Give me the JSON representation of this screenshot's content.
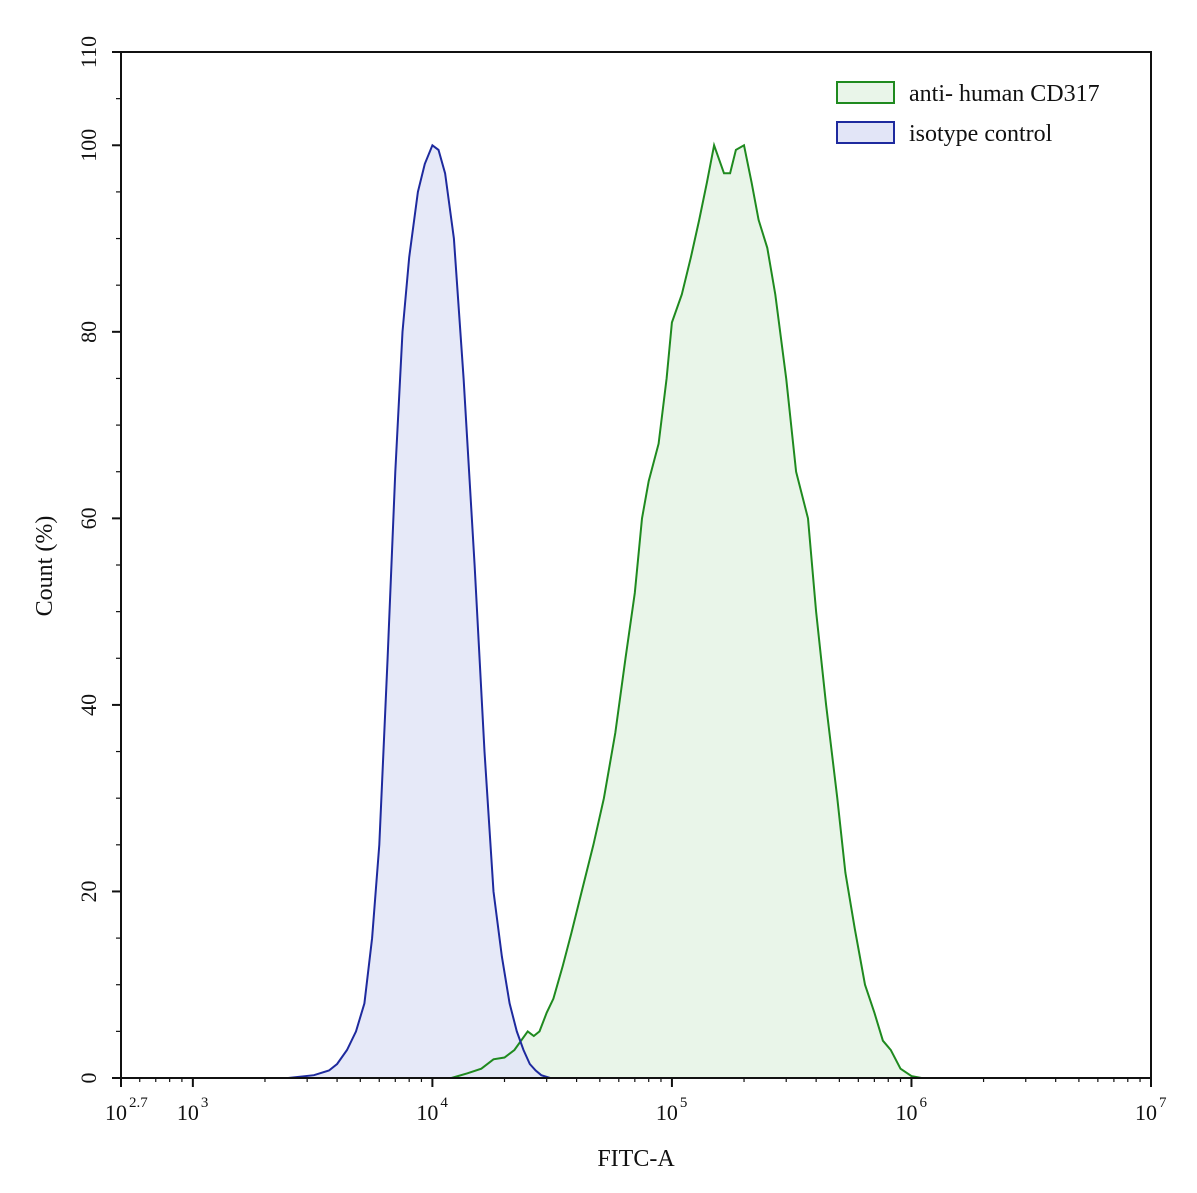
{
  "chart_data": {
    "type": "area",
    "title": "",
    "xlabel": "FITC-A",
    "ylabel": "Count  (%)",
    "x_scale": "log10",
    "xlim": [
      501.187,
      10000000
    ],
    "ylim": [
      0,
      110
    ],
    "x_ticks": [
      {
        "value": 501.187,
        "base": "10",
        "exp": "2.7"
      },
      {
        "value": 1000,
        "base": "10",
        "exp": "3"
      },
      {
        "value": 10000,
        "base": "10",
        "exp": "4"
      },
      {
        "value": 100000,
        "base": "10",
        "exp": "5"
      },
      {
        "value": 1000000,
        "base": "10",
        "exp": "6"
      },
      {
        "value": 10000000,
        "base": "10",
        "exp": "7"
      }
    ],
    "y_ticks": [
      "0",
      "20",
      "40",
      "60",
      "80",
      "100",
      "110"
    ],
    "grid": false,
    "legend_position": "top-right",
    "series": [
      {
        "name": "anti- human CD317",
        "stroke": "#1f8a1f",
        "fill": "#e9f5e9",
        "points": [
          [
            12000,
            0
          ],
          [
            14000,
            0.5
          ],
          [
            16000,
            1
          ],
          [
            18000,
            2
          ],
          [
            20000,
            2.2
          ],
          [
            22000,
            3
          ],
          [
            25000,
            5
          ],
          [
            26500,
            4.5
          ],
          [
            28000,
            5
          ],
          [
            30000,
            7
          ],
          [
            32000,
            8.5
          ],
          [
            35000,
            12
          ],
          [
            38000,
            15.5
          ],
          [
            42000,
            20
          ],
          [
            47000,
            25
          ],
          [
            52000,
            30
          ],
          [
            58000,
            37
          ],
          [
            64000,
            45
          ],
          [
            70000,
            52
          ],
          [
            75000,
            60
          ],
          [
            80000,
            64
          ],
          [
            88000,
            68
          ],
          [
            95000,
            75
          ],
          [
            100000,
            81
          ],
          [
            110000,
            84
          ],
          [
            120000,
            88
          ],
          [
            130000,
            92
          ],
          [
            140000,
            96
          ],
          [
            150000,
            100
          ],
          [
            165000,
            97
          ],
          [
            175000,
            97
          ],
          [
            185000,
            99.5
          ],
          [
            200000,
            100
          ],
          [
            215000,
            96
          ],
          [
            230000,
            92
          ],
          [
            250000,
            89
          ],
          [
            270000,
            84
          ],
          [
            300000,
            75
          ],
          [
            330000,
            65
          ],
          [
            370000,
            60
          ],
          [
            400000,
            50
          ],
          [
            440000,
            40
          ],
          [
            490000,
            30
          ],
          [
            530000,
            22
          ],
          [
            580000,
            16
          ],
          [
            640000,
            10
          ],
          [
            700000,
            7
          ],
          [
            760000,
            4
          ],
          [
            820000,
            3
          ],
          [
            900000,
            1
          ],
          [
            1000000,
            0.2
          ],
          [
            1100000,
            0
          ]
        ]
      },
      {
        "name": "isotype control",
        "stroke": "#1e2a9e",
        "fill": "#e2e5f7",
        "points": [
          [
            2500,
            0
          ],
          [
            3200,
            0.3
          ],
          [
            3700,
            0.8
          ],
          [
            4000,
            1.5
          ],
          [
            4400,
            3
          ],
          [
            4800,
            5
          ],
          [
            5200,
            8
          ],
          [
            5600,
            15
          ],
          [
            6000,
            25
          ],
          [
            6500,
            45
          ],
          [
            7000,
            65
          ],
          [
            7500,
            80
          ],
          [
            8000,
            88
          ],
          [
            8700,
            95
          ],
          [
            9300,
            98
          ],
          [
            10000,
            100
          ],
          [
            10600,
            99.5
          ],
          [
            11300,
            97
          ],
          [
            12300,
            90
          ],
          [
            13500,
            75
          ],
          [
            15000,
            55
          ],
          [
            16500,
            35
          ],
          [
            18000,
            20
          ],
          [
            19500,
            13
          ],
          [
            21000,
            8
          ],
          [
            22500,
            5
          ],
          [
            24000,
            3
          ],
          [
            25500,
            1.5
          ],
          [
            27000,
            0.8
          ],
          [
            28500,
            0.3
          ],
          [
            31000,
            0
          ]
        ]
      }
    ]
  }
}
